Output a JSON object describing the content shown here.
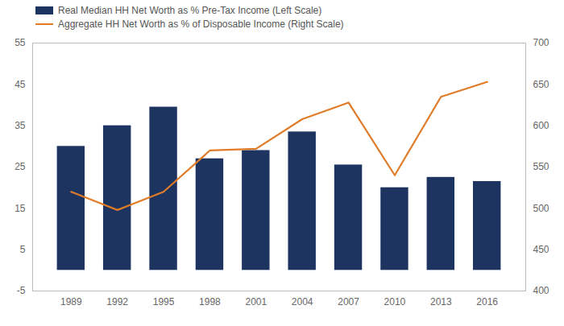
{
  "chart_data": {
    "type": "bar",
    "x": [
      1989,
      1992,
      1995,
      1998,
      2001,
      2004,
      2007,
      2010,
      2013,
      2016
    ],
    "xlim": [
      1986.5,
      2018.5
    ],
    "xticks": [
      1989,
      1992,
      1995,
      1998,
      2001,
      2004,
      2007,
      2010,
      2013,
      2016
    ],
    "ylim": [
      -5,
      55
    ],
    "yticks": [
      -5,
      5,
      15,
      25,
      35,
      45,
      55
    ],
    "y2lim": [
      400,
      700
    ],
    "y2ticks": [
      400,
      450,
      500,
      550,
      600,
      650,
      700
    ],
    "grid": false,
    "legend": "upper left",
    "series": [
      {
        "name": "Real Median HH Net Worth as % Pre-Tax Income (Left Scale)",
        "type": "bar",
        "color": "#1d3461",
        "values": [
          30.0,
          35.0,
          39.5,
          27.0,
          29.0,
          33.5,
          25.5,
          20.0,
          22.5,
          21.5
        ]
      },
      {
        "name": "Aggregate HH Net Worth as % of Disposable Income (Right Scale)",
        "type": "line",
        "color": "#e07b28",
        "axis": "y2",
        "values": [
          520,
          498,
          520,
          570,
          572,
          608,
          628,
          540,
          635,
          653
        ]
      }
    ]
  }
}
